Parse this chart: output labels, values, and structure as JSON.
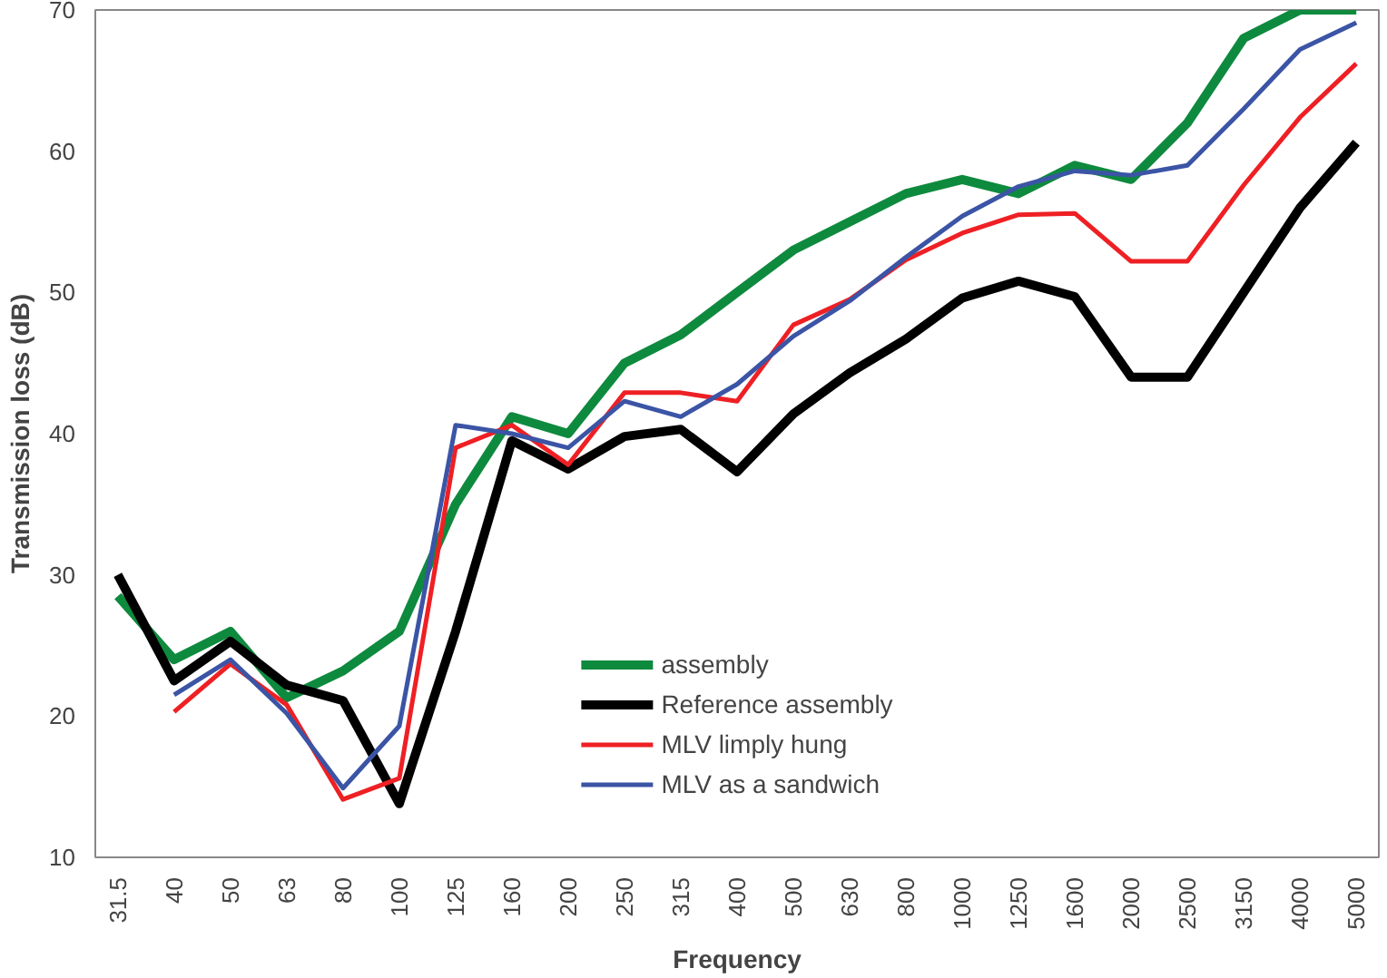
{
  "chart_data": {
    "type": "line",
    "xlabel": "Frequency",
    "ylabel": "Transmission loss (dB)",
    "categories": [
      "31.5",
      "40",
      "50",
      "63",
      "80",
      "100",
      "125",
      "160",
      "200",
      "250",
      "315",
      "400",
      "500",
      "630",
      "800",
      "1000",
      "1250",
      "1600",
      "2000",
      "2500",
      "3150",
      "4000",
      "5000"
    ],
    "series": [
      {
        "name": "assembly",
        "color": "#0e8a3e",
        "values": [
          28.5,
          24,
          26,
          21.3,
          23.2,
          26,
          35,
          41.2,
          40,
          45,
          47,
          50,
          53,
          55,
          57,
          58,
          57,
          59,
          58,
          62,
          68,
          70,
          70
        ]
      },
      {
        "name": "Reference assembly",
        "color": "#000000",
        "values": [
          30,
          22.5,
          25.3,
          22.2,
          21.1,
          13.8,
          26,
          39.5,
          37.5,
          39.8,
          40.3,
          37.3,
          41.4,
          44.3,
          46.7,
          49.6,
          50.8,
          49.7,
          44,
          44,
          50,
          56,
          60.6
        ]
      },
      {
        "name": "MLV limply hung",
        "color": "#ee2024",
        "values": [
          null,
          20.3,
          23.7,
          20.8,
          14.1,
          15.6,
          39,
          40.6,
          37.8,
          42.9,
          42.9,
          42.3,
          47.7,
          49.5,
          52.3,
          54.2,
          55.5,
          55.6,
          52.2,
          52.2,
          57.6,
          62.4,
          66.2
        ]
      },
      {
        "name": "MLV as a sandwich",
        "color": "#3b54a5",
        "values": [
          null,
          21.5,
          24,
          20.2,
          14.9,
          19.3,
          40.6,
          40,
          39,
          42.3,
          41.2,
          43.5,
          46.9,
          49.4,
          52.5,
          55.4,
          57.5,
          58.6,
          58.3,
          59,
          63,
          67.2,
          69.1
        ]
      }
    ],
    "ylim": [
      10,
      70
    ],
    "yticks": [
      10,
      20,
      30,
      40,
      50,
      60,
      70
    ],
    "grid": false,
    "legend": "bottom",
    "marker": "none",
    "line_style": "solid"
  }
}
